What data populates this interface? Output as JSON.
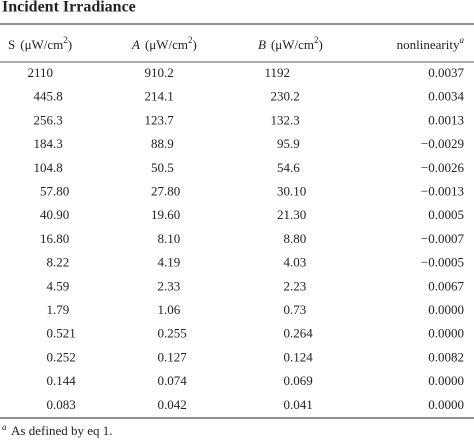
{
  "title": "Incident Irradiance",
  "table": {
    "headers": [
      {
        "label": "S",
        "unit": "(μW/cm",
        "sup": "2",
        "close": ")"
      },
      {
        "label": "A",
        "unit": "(μW/cm",
        "sup": "2",
        "close": ")"
      },
      {
        "label": "B",
        "unit": "(μW/cm",
        "sup": "2",
        "close": ")"
      },
      {
        "label": "nonlinearity",
        "sup": "a"
      }
    ],
    "rows": [
      [
        "2110",
        "910.2",
        "1192",
        "0.0037"
      ],
      [
        "445.8",
        "214.1",
        "230.2",
        "0.0034"
      ],
      [
        "256.3",
        "123.7",
        "132.3",
        "0.0013"
      ],
      [
        "184.3",
        "88.9",
        "95.9",
        "−0.0029"
      ],
      [
        "104.8",
        "50.5",
        "54.6",
        "−0.0026"
      ],
      [
        "57.80",
        "27.80",
        "30.10",
        "−0.0013"
      ],
      [
        "40.90",
        "19.60",
        "21.30",
        "0.0005"
      ],
      [
        "16.80",
        "8.10",
        "8.80",
        "−0.0007"
      ],
      [
        "8.22",
        "4.19",
        "4.03",
        "−0.0005"
      ],
      [
        "4.59",
        "2.33",
        "2.23",
        "0.0067"
      ],
      [
        "1.79",
        "1.06",
        "0.73",
        "0.0000"
      ],
      [
        "0.521",
        "0.255",
        "0.264",
        "0.0000"
      ],
      [
        "0.252",
        "0.127",
        "0.124",
        "0.0082"
      ],
      [
        "0.144",
        "0.074",
        "0.069",
        "0.0000"
      ],
      [
        "0.083",
        "0.042",
        "0.041",
        "0.0000"
      ]
    ]
  },
  "footnote": {
    "marker": "a",
    "text": "As defined by eq 1."
  }
}
